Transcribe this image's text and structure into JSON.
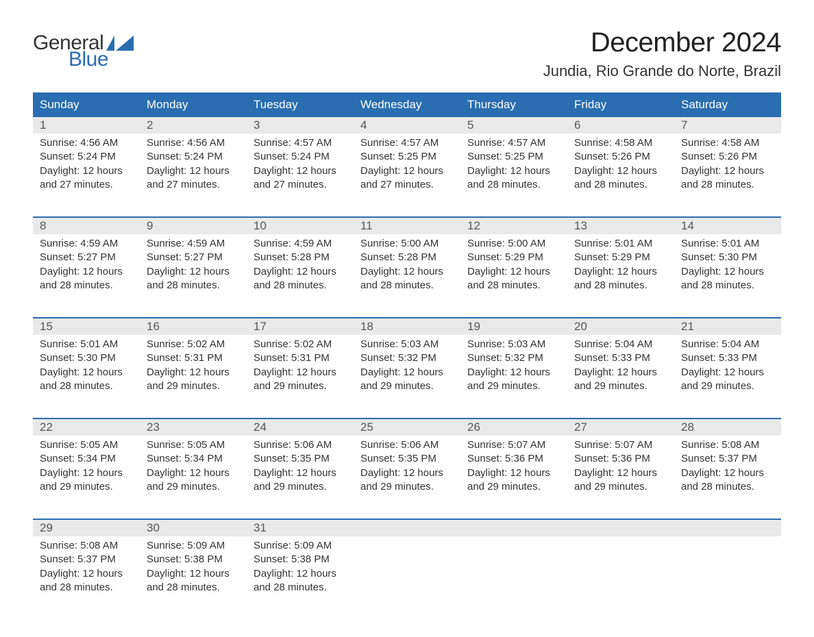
{
  "logo": {
    "line1": "General",
    "line2": "Blue",
    "accent_color": "#2a6db0"
  },
  "title": "December 2024",
  "location": "Jundia, Rio Grande do Norte, Brazil",
  "colors": {
    "header_bg": "#2a6db0",
    "header_fg": "#ffffff",
    "daynum_bg": "#e9e9e9",
    "daynum_fg": "#555555",
    "text": "#333333",
    "rule": "#2a6db0",
    "page_bg": "#ffffff"
  },
  "fonts": {
    "title_pt": 40,
    "location_pt": 22,
    "dayhead_pt": 17,
    "body_pt": 15
  },
  "day_headers": [
    "Sunday",
    "Monday",
    "Tuesday",
    "Wednesday",
    "Thursday",
    "Friday",
    "Saturday"
  ],
  "weeks": [
    [
      {
        "n": "1",
        "sr": "4:56 AM",
        "ss": "5:24 PM",
        "dl": "12 hours and 27 minutes."
      },
      {
        "n": "2",
        "sr": "4:56 AM",
        "ss": "5:24 PM",
        "dl": "12 hours and 27 minutes."
      },
      {
        "n": "3",
        "sr": "4:57 AM",
        "ss": "5:24 PM",
        "dl": "12 hours and 27 minutes."
      },
      {
        "n": "4",
        "sr": "4:57 AM",
        "ss": "5:25 PM",
        "dl": "12 hours and 27 minutes."
      },
      {
        "n": "5",
        "sr": "4:57 AM",
        "ss": "5:25 PM",
        "dl": "12 hours and 28 minutes."
      },
      {
        "n": "6",
        "sr": "4:58 AM",
        "ss": "5:26 PM",
        "dl": "12 hours and 28 minutes."
      },
      {
        "n": "7",
        "sr": "4:58 AM",
        "ss": "5:26 PM",
        "dl": "12 hours and 28 minutes."
      }
    ],
    [
      {
        "n": "8",
        "sr": "4:59 AM",
        "ss": "5:27 PM",
        "dl": "12 hours and 28 minutes."
      },
      {
        "n": "9",
        "sr": "4:59 AM",
        "ss": "5:27 PM",
        "dl": "12 hours and 28 minutes."
      },
      {
        "n": "10",
        "sr": "4:59 AM",
        "ss": "5:28 PM",
        "dl": "12 hours and 28 minutes."
      },
      {
        "n": "11",
        "sr": "5:00 AM",
        "ss": "5:28 PM",
        "dl": "12 hours and 28 minutes."
      },
      {
        "n": "12",
        "sr": "5:00 AM",
        "ss": "5:29 PM",
        "dl": "12 hours and 28 minutes."
      },
      {
        "n": "13",
        "sr": "5:01 AM",
        "ss": "5:29 PM",
        "dl": "12 hours and 28 minutes."
      },
      {
        "n": "14",
        "sr": "5:01 AM",
        "ss": "5:30 PM",
        "dl": "12 hours and 28 minutes."
      }
    ],
    [
      {
        "n": "15",
        "sr": "5:01 AM",
        "ss": "5:30 PM",
        "dl": "12 hours and 28 minutes."
      },
      {
        "n": "16",
        "sr": "5:02 AM",
        "ss": "5:31 PM",
        "dl": "12 hours and 29 minutes."
      },
      {
        "n": "17",
        "sr": "5:02 AM",
        "ss": "5:31 PM",
        "dl": "12 hours and 29 minutes."
      },
      {
        "n": "18",
        "sr": "5:03 AM",
        "ss": "5:32 PM",
        "dl": "12 hours and 29 minutes."
      },
      {
        "n": "19",
        "sr": "5:03 AM",
        "ss": "5:32 PM",
        "dl": "12 hours and 29 minutes."
      },
      {
        "n": "20",
        "sr": "5:04 AM",
        "ss": "5:33 PM",
        "dl": "12 hours and 29 minutes."
      },
      {
        "n": "21",
        "sr": "5:04 AM",
        "ss": "5:33 PM",
        "dl": "12 hours and 29 minutes."
      }
    ],
    [
      {
        "n": "22",
        "sr": "5:05 AM",
        "ss": "5:34 PM",
        "dl": "12 hours and 29 minutes."
      },
      {
        "n": "23",
        "sr": "5:05 AM",
        "ss": "5:34 PM",
        "dl": "12 hours and 29 minutes."
      },
      {
        "n": "24",
        "sr": "5:06 AM",
        "ss": "5:35 PM",
        "dl": "12 hours and 29 minutes."
      },
      {
        "n": "25",
        "sr": "5:06 AM",
        "ss": "5:35 PM",
        "dl": "12 hours and 29 minutes."
      },
      {
        "n": "26",
        "sr": "5:07 AM",
        "ss": "5:36 PM",
        "dl": "12 hours and 29 minutes."
      },
      {
        "n": "27",
        "sr": "5:07 AM",
        "ss": "5:36 PM",
        "dl": "12 hours and 29 minutes."
      },
      {
        "n": "28",
        "sr": "5:08 AM",
        "ss": "5:37 PM",
        "dl": "12 hours and 28 minutes."
      }
    ],
    [
      {
        "n": "29",
        "sr": "5:08 AM",
        "ss": "5:37 PM",
        "dl": "12 hours and 28 minutes."
      },
      {
        "n": "30",
        "sr": "5:09 AM",
        "ss": "5:38 PM",
        "dl": "12 hours and 28 minutes."
      },
      {
        "n": "31",
        "sr": "5:09 AM",
        "ss": "5:38 PM",
        "dl": "12 hours and 28 minutes."
      },
      null,
      null,
      null,
      null
    ]
  ],
  "labels": {
    "sunrise": "Sunrise: ",
    "sunset": "Sunset: ",
    "daylight": "Daylight: "
  }
}
